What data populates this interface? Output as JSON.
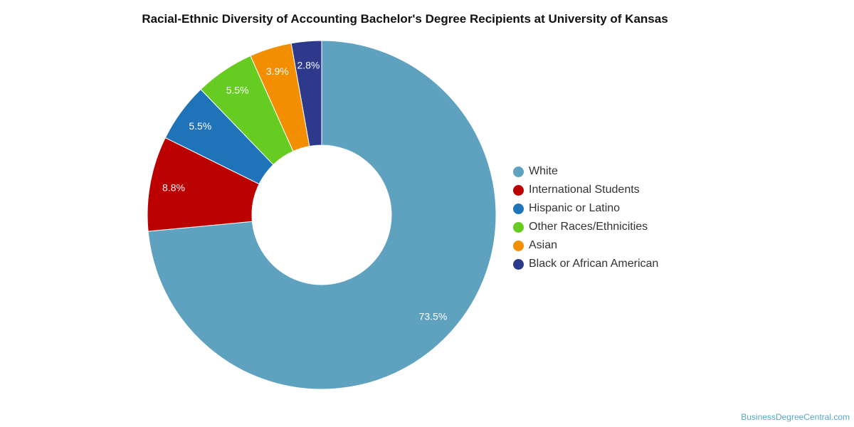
{
  "chart_data": {
    "type": "pie",
    "variant": "donut",
    "title": "Racial-Ethnic Diversity of Accounting Bachelor's Degree Recipients at University of Kansas",
    "categories": [
      "White",
      "International Students",
      "Hispanic or Latino",
      "Other Races/Ethnicities",
      "Asian",
      "Black or African American"
    ],
    "values": [
      73.5,
      8.8,
      5.5,
      5.5,
      3.9,
      2.8
    ],
    "value_labels": [
      "73.5%",
      "8.8%",
      "5.5%",
      "5.5%",
      "3.9%",
      "2.8%"
    ],
    "colors": [
      "#5fa2bf",
      "#bb0000",
      "#1f73b8",
      "#66cc22",
      "#f28e00",
      "#2d3a8c"
    ],
    "legend_position": "right"
  },
  "credit": "BusinessDegreeCentral.com"
}
